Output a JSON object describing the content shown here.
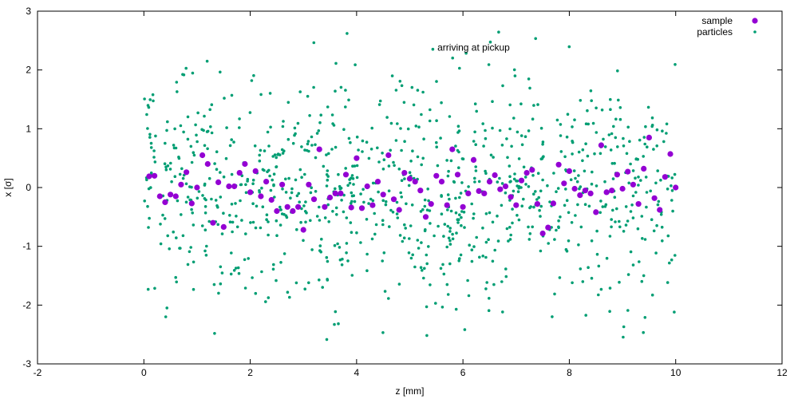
{
  "chart_data": {
    "type": "scatter",
    "xlabel": "z [mm]",
    "ylabel": "x [σ]",
    "xlim": [
      -2,
      12
    ],
    "ylim": [
      -3,
      3
    ],
    "x_ticks": [
      "-2",
      "0",
      "2",
      "4",
      "6",
      "8",
      "10",
      "12"
    ],
    "y_ticks": [
      "-3",
      "-2",
      "-1",
      "0",
      "1",
      "2",
      "3"
    ],
    "grid": false,
    "legend_position": "top-right",
    "annotation": "arriving at pickup",
    "annotation_pos": [
      6.2,
      2.38
    ],
    "series": [
      {
        "name": "sample",
        "color": "#9400d3",
        "marker": "large-dot",
        "points": [
          [
            0.1,
            0.19
          ],
          [
            0.2,
            0.2
          ],
          [
            0.3,
            -0.15
          ],
          [
            0.4,
            -0.25
          ],
          [
            0.5,
            -0.12
          ],
          [
            0.6,
            -0.15
          ],
          [
            0.7,
            0.05
          ],
          [
            0.8,
            0.26
          ],
          [
            0.9,
            -0.27
          ],
          [
            1.0,
            0.0
          ],
          [
            1.1,
            0.55
          ],
          [
            1.2,
            0.4
          ],
          [
            1.3,
            -0.6
          ],
          [
            1.4,
            0.09
          ],
          [
            1.5,
            -0.67
          ],
          [
            1.6,
            0.02
          ],
          [
            1.7,
            0.02
          ],
          [
            1.8,
            0.25
          ],
          [
            1.9,
            0.4
          ],
          [
            2.0,
            -0.08
          ],
          [
            2.1,
            0.28
          ],
          [
            2.2,
            -0.15
          ],
          [
            2.3,
            0.1
          ],
          [
            2.4,
            -0.21
          ],
          [
            2.5,
            -0.4
          ],
          [
            2.6,
            0.05
          ],
          [
            2.7,
            -0.33
          ],
          [
            2.8,
            -0.4
          ],
          [
            2.9,
            -0.33
          ],
          [
            3.0,
            -0.72
          ],
          [
            3.1,
            0.05
          ],
          [
            3.2,
            -0.2
          ],
          [
            3.3,
            0.65
          ],
          [
            3.4,
            -0.33
          ],
          [
            3.5,
            -0.17
          ],
          [
            3.6,
            -0.1
          ],
          [
            3.7,
            -0.1
          ],
          [
            3.8,
            0.22
          ],
          [
            3.9,
            -0.34
          ],
          [
            4.0,
            0.5
          ],
          [
            4.1,
            -0.35
          ],
          [
            4.2,
            0.02
          ],
          [
            4.3,
            -0.3
          ],
          [
            4.4,
            0.1
          ],
          [
            4.5,
            -0.12
          ],
          [
            4.6,
            0.55
          ],
          [
            4.7,
            -0.2
          ],
          [
            4.8,
            -0.38
          ],
          [
            4.9,
            0.25
          ],
          [
            5.0,
            0.15
          ],
          [
            5.1,
            0.1
          ],
          [
            5.2,
            -0.05
          ],
          [
            5.3,
            -0.5
          ],
          [
            5.4,
            -0.28
          ],
          [
            5.5,
            0.2
          ],
          [
            5.6,
            0.1
          ],
          [
            5.7,
            -0.3
          ],
          [
            5.8,
            0.65
          ],
          [
            5.9,
            0.22
          ],
          [
            6.0,
            -0.33
          ],
          [
            6.1,
            -0.1
          ],
          [
            6.2,
            0.47
          ],
          [
            6.3,
            -0.06
          ],
          [
            6.4,
            -0.1
          ],
          [
            6.5,
            0.1
          ],
          [
            6.6,
            0.21
          ],
          [
            6.7,
            -0.03
          ],
          [
            6.8,
            0.02
          ],
          [
            6.9,
            -0.16
          ],
          [
            7.0,
            -0.3
          ],
          [
            7.1,
            0.12
          ],
          [
            7.2,
            0.25
          ],
          [
            7.3,
            0.3
          ],
          [
            7.4,
            -0.28
          ],
          [
            7.5,
            -0.78
          ],
          [
            7.6,
            -0.68
          ],
          [
            7.7,
            -0.27
          ],
          [
            7.8,
            0.39
          ],
          [
            7.9,
            0.07
          ],
          [
            8.0,
            0.28
          ],
          [
            8.1,
            -0.02
          ],
          [
            8.2,
            -0.13
          ],
          [
            8.3,
            -0.05
          ],
          [
            8.4,
            -0.1
          ],
          [
            8.5,
            -0.42
          ],
          [
            8.6,
            0.72
          ],
          [
            8.7,
            -0.08
          ],
          [
            8.8,
            -0.05
          ],
          [
            8.9,
            0.22
          ],
          [
            9.0,
            -0.02
          ],
          [
            9.1,
            0.27
          ],
          [
            9.2,
            0.05
          ],
          [
            9.3,
            -0.28
          ],
          [
            9.4,
            0.32
          ],
          [
            9.5,
            0.85
          ],
          [
            9.6,
            -0.18
          ],
          [
            9.7,
            -0.38
          ],
          [
            9.8,
            0.18
          ],
          [
            9.9,
            0.57
          ],
          [
            10.0,
            0.0
          ]
        ]
      },
      {
        "name": "particles",
        "color": "#009e73",
        "marker": "small-dot",
        "count": 1000,
        "x_range": [
          0,
          10
        ],
        "distribution": "gaussian",
        "mean": 0,
        "sigma": 1,
        "max_abs": 2.7
      }
    ]
  }
}
